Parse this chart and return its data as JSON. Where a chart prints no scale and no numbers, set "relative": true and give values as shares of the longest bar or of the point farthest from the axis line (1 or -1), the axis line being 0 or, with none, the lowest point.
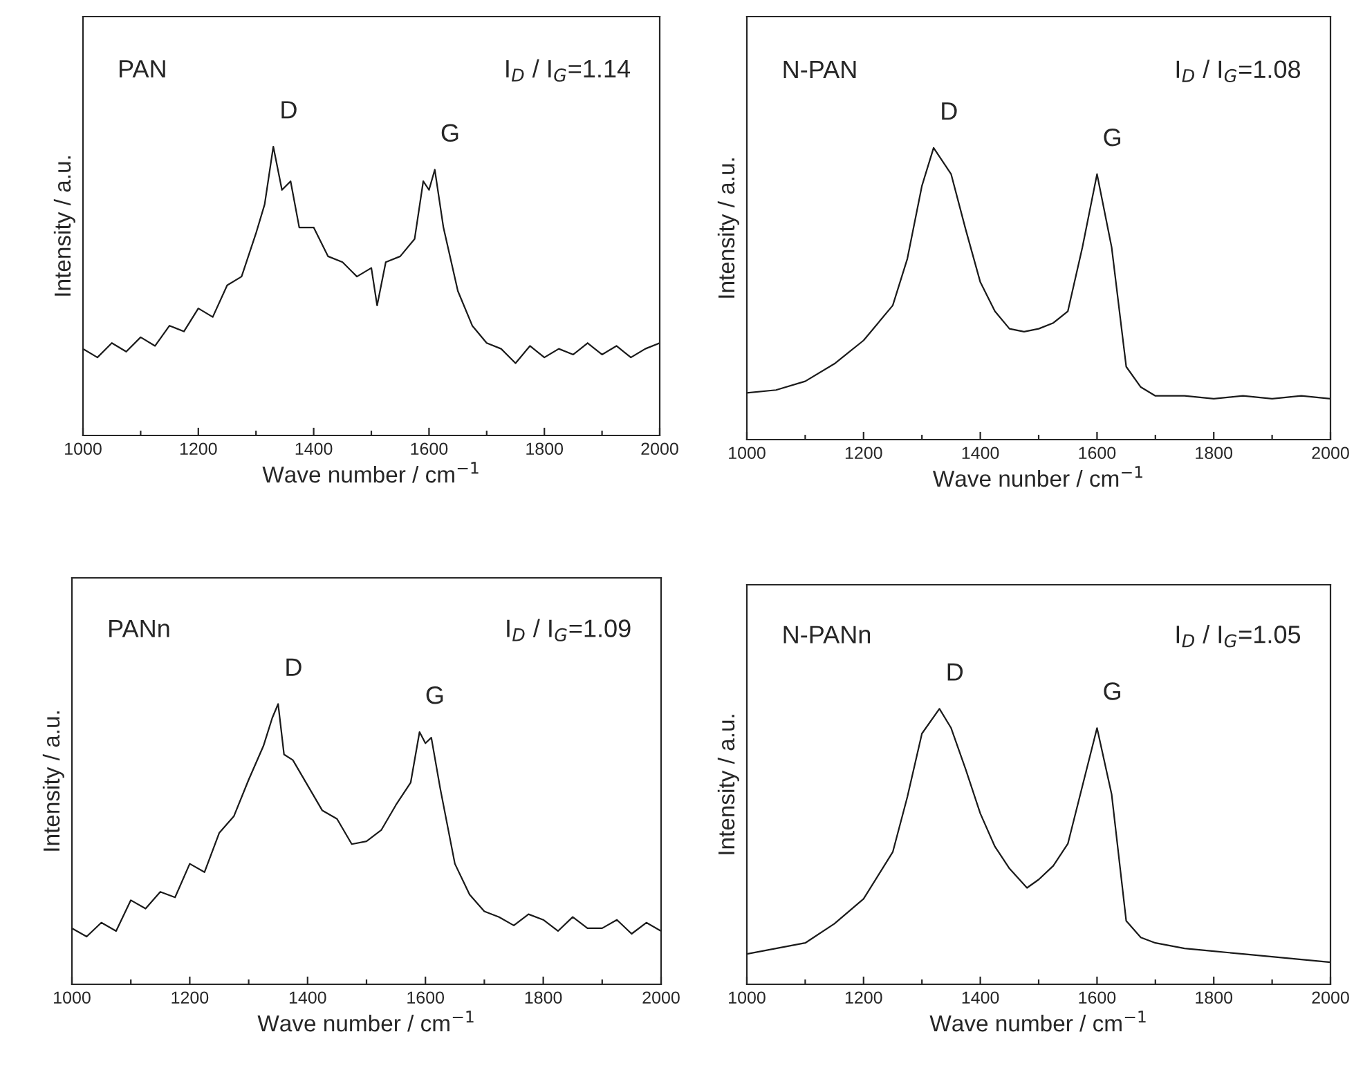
{
  "chart_data": [
    {
      "type": "line",
      "relative": true,
      "xlabel": "Wave number / cm$^{−1}$",
      "ylabel": "Intensity / a.u.",
      "xlim": [
        1000,
        2000
      ],
      "xticks": [
        1000,
        {
          "value": 1100,
          "label": null
        },
        1200,
        {
          "value": 1300,
          "label": null
        },
        1400,
        {
          "value": 1500,
          "label": null
        },
        1600,
        {
          "value": 1700,
          "label": null
        },
        1800,
        {
          "value": 1900,
          "label": null
        },
        2000
      ],
      "grid": false,
      "legend": false,
      "annotations": [
        "PAN",
        "I$_{D}$ / I$_{G}$=1.14",
        "D",
        "G"
      ],
      "series": [
        {
          "color": "#1a1a1a",
          "x": [
            1000,
            1025,
            1050,
            1075,
            1100,
            1125,
            1150,
            1175,
            1200,
            1225,
            1250,
            1275,
            1300,
            1315,
            1330,
            1345,
            1360,
            1375,
            1400,
            1425,
            1450,
            1475,
            1500,
            1510,
            1525,
            1550,
            1575,
            1590,
            1600,
            1610,
            1625,
            1650,
            1675,
            1700,
            1725,
            1750,
            1775,
            1800,
            1825,
            1850,
            1875,
            1900,
            1925,
            1950,
            1975,
            2000
          ],
          "values": [
            0.3,
            0.27,
            0.32,
            0.29,
            0.34,
            0.31,
            0.38,
            0.36,
            0.44,
            0.41,
            0.52,
            0.55,
            0.7,
            0.8,
            1.0,
            0.85,
            0.88,
            0.72,
            0.72,
            0.62,
            0.6,
            0.55,
            0.58,
            0.45,
            0.6,
            0.62,
            0.68,
            0.88,
            0.85,
            0.92,
            0.72,
            0.5,
            0.38,
            0.32,
            0.3,
            0.25,
            0.31,
            0.27,
            0.3,
            0.28,
            0.32,
            0.28,
            0.31,
            0.27,
            0.3,
            0.32
          ]
        }
      ]
    },
    {
      "type": "line",
      "relative": true,
      "xlabel": "Wave nunber / cm$^{−1}$",
      "ylabel": "Intensity / a.u.",
      "xlim": [
        1000,
        2000
      ],
      "xticks": [
        1000,
        {
          "value": 1100,
          "label": null
        },
        1200,
        {
          "value": 1300,
          "label": null
        },
        1400,
        {
          "value": 1500,
          "label": null
        },
        1600,
        {
          "value": 1700,
          "label": null
        },
        1800,
        {
          "value": 1900,
          "label": null
        },
        2000
      ],
      "grid": false,
      "legend": false,
      "annotations": [
        "N-PAN",
        "I$_{D}$ / I$_{G}$=1.08",
        "D",
        "G"
      ],
      "series": [
        {
          "color": "#1a1a1a",
          "x": [
            1000,
            1050,
            1100,
            1150,
            1200,
            1250,
            1275,
            1300,
            1320,
            1350,
            1375,
            1400,
            1425,
            1450,
            1475,
            1500,
            1525,
            1550,
            1575,
            1600,
            1625,
            1650,
            1675,
            1700,
            1750,
            1800,
            1850,
            1900,
            1950,
            2000
          ],
          "values": [
            0.16,
            0.17,
            0.2,
            0.26,
            0.34,
            0.46,
            0.62,
            0.87,
            1.0,
            0.91,
            0.72,
            0.54,
            0.44,
            0.38,
            0.37,
            0.38,
            0.4,
            0.44,
            0.66,
            0.91,
            0.66,
            0.25,
            0.18,
            0.15,
            0.15,
            0.14,
            0.15,
            0.14,
            0.15,
            0.14
          ]
        }
      ]
    },
    {
      "type": "line",
      "relative": true,
      "xlabel": "Wave number / cm$^{−1}$",
      "ylabel": "Intensity / a.u.",
      "xlim": [
        1000,
        2000
      ],
      "xticks": [
        1000,
        {
          "value": 1100,
          "label": null
        },
        1200,
        {
          "value": 1300,
          "label": null
        },
        1400,
        {
          "value": 1500,
          "label": null
        },
        1600,
        {
          "value": 1700,
          "label": null
        },
        1800,
        {
          "value": 1900,
          "label": null
        },
        2000
      ],
      "grid": false,
      "legend": false,
      "annotations": [
        "PANn",
        "I$_{D}$ / I$_{G}$=1.09",
        "D",
        "G"
      ],
      "series": [
        {
          "color": "#1a1a1a",
          "x": [
            1000,
            1025,
            1050,
            1075,
            1100,
            1125,
            1150,
            1175,
            1200,
            1225,
            1250,
            1275,
            1300,
            1325,
            1340,
            1350,
            1360,
            1375,
            1400,
            1425,
            1450,
            1475,
            1500,
            1525,
            1550,
            1575,
            1590,
            1600,
            1610,
            1625,
            1650,
            1675,
            1700,
            1725,
            1750,
            1775,
            1800,
            1825,
            1850,
            1875,
            1900,
            1925,
            1950,
            1975,
            2000
          ],
          "values": [
            0.2,
            0.17,
            0.22,
            0.19,
            0.3,
            0.27,
            0.33,
            0.31,
            0.43,
            0.4,
            0.54,
            0.6,
            0.73,
            0.85,
            0.95,
            1.0,
            0.82,
            0.8,
            0.71,
            0.62,
            0.59,
            0.5,
            0.51,
            0.55,
            0.64,
            0.72,
            0.9,
            0.86,
            0.88,
            0.7,
            0.43,
            0.32,
            0.26,
            0.24,
            0.21,
            0.25,
            0.23,
            0.19,
            0.24,
            0.2,
            0.2,
            0.23,
            0.18,
            0.22,
            0.19
          ]
        }
      ]
    },
    {
      "type": "line",
      "relative": true,
      "xlabel": "Wave number / cm$^{−1}$",
      "ylabel": "Intensity / a.u.",
      "xlim": [
        1000,
        2000
      ],
      "xticks": [
        1000,
        {
          "value": 1100,
          "label": null
        },
        1200,
        {
          "value": 1300,
          "label": null
        },
        1400,
        {
          "value": 1500,
          "label": null
        },
        1600,
        {
          "value": 1700,
          "label": null
        },
        1800,
        {
          "value": 1900,
          "label": null
        },
        2000
      ],
      "grid": false,
      "legend": false,
      "annotations": [
        "N-PANn",
        "I$_{D}$ / I$_{G}$=1.05",
        "D",
        "G"
      ],
      "series": [
        {
          "color": "#1a1a1a",
          "x": [
            1000,
            1050,
            1100,
            1150,
            1200,
            1250,
            1275,
            1300,
            1330,
            1350,
            1375,
            1400,
            1425,
            1450,
            1480,
            1500,
            1525,
            1550,
            1575,
            1600,
            1625,
            1650,
            1675,
            1700,
            1750,
            1800,
            1850,
            1900,
            1950,
            2000
          ],
          "values": [
            0.11,
            0.13,
            0.15,
            0.22,
            0.31,
            0.48,
            0.68,
            0.91,
            1.0,
            0.93,
            0.78,
            0.62,
            0.5,
            0.42,
            0.35,
            0.38,
            0.43,
            0.51,
            0.72,
            0.93,
            0.69,
            0.23,
            0.17,
            0.15,
            0.13,
            0.12,
            0.11,
            0.1,
            0.09,
            0.08
          ]
        }
      ]
    }
  ]
}
